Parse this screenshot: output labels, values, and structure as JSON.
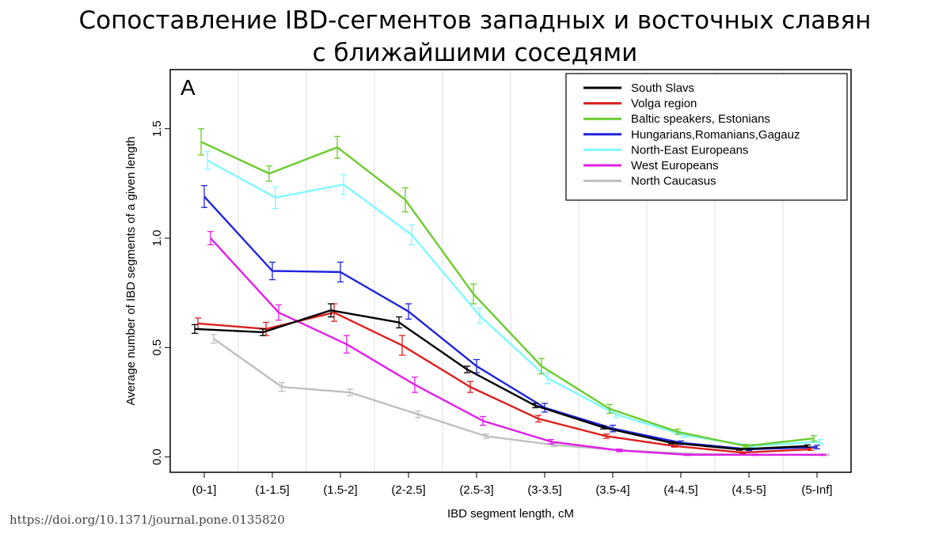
{
  "slide": {
    "title_line1": "Сопоставление IBD-сегментов западных и восточных славян",
    "title_line2": "с ближайшими соседями",
    "source": "https://doi.org/10.1371/journal.pone.0135820"
  },
  "chart_data": {
    "type": "line",
    "panel_label": "A",
    "title": "",
    "xlabel": "IBD segment length, cM",
    "ylabel": "Average number of IBD segments of a given length",
    "categories": [
      "(0-1]",
      "(1-1.5]",
      "(1.5-2]",
      "(2-2.5]",
      "(2.5-3]",
      "(3-3.5]",
      "(3.5-4]",
      "(4-4.5]",
      "(4.5-5]",
      "(5-Inf]"
    ],
    "ylim": [
      -0.07,
      1.77
    ],
    "yticks": [
      0.0,
      0.5,
      1.0,
      1.5
    ],
    "ytick_labels": [
      "0.0",
      "0.5",
      "1.0",
      "1.5"
    ],
    "grid": "vertical",
    "legend_position": "top-right",
    "series": [
      {
        "name": "South Slavs",
        "color": "#000000",
        "offset": 0,
        "values": [
          0.585,
          0.57,
          0.67,
          0.615,
          0.4,
          0.235,
          0.135,
          0.065,
          0.035,
          0.05
        ],
        "errors": [
          0.02,
          0.015,
          0.03,
          0.025,
          0.015,
          0.01,
          0.007,
          0.005,
          0.004,
          0.005
        ]
      },
      {
        "name": "Volga region",
        "color": "#dd1f1f",
        "offset": 1,
        "values": [
          0.61,
          0.585,
          0.66,
          0.51,
          0.32,
          0.175,
          0.095,
          0.05,
          0.02,
          0.035
        ],
        "errors": [
          0.025,
          0.03,
          0.04,
          0.045,
          0.025,
          0.015,
          0.01,
          0.005,
          0.004,
          0.005
        ]
      },
      {
        "name": "Baltic speakers, Estonians",
        "color": "#6acc2e",
        "offset": 2,
        "values": [
          1.44,
          1.295,
          1.415,
          1.175,
          0.745,
          0.415,
          0.22,
          0.115,
          0.05,
          0.085
        ],
        "errors": [
          0.06,
          0.035,
          0.05,
          0.055,
          0.045,
          0.035,
          0.02,
          0.012,
          0.007,
          0.012
        ]
      },
      {
        "name": "Hungarians,Romanians,Gagauz",
        "color": "#1f23dd",
        "offset": 3,
        "values": [
          1.19,
          0.85,
          0.845,
          0.665,
          0.415,
          0.225,
          0.13,
          0.065,
          0.035,
          0.045
        ],
        "errors": [
          0.05,
          0.04,
          0.045,
          0.035,
          0.03,
          0.02,
          0.015,
          0.008,
          0.006,
          0.008
        ]
      },
      {
        "name": "North-East Europeans",
        "color": "#80f8ff",
        "offset": 4,
        "values": [
          1.355,
          1.185,
          1.245,
          1.015,
          0.645,
          0.36,
          0.195,
          0.1,
          0.05,
          0.07
        ],
        "errors": [
          0.04,
          0.05,
          0.045,
          0.045,
          0.035,
          0.025,
          0.015,
          0.01,
          0.007,
          0.01
        ]
      },
      {
        "name": "West Europeans",
        "color": "#e020e8",
        "offset": 5,
        "values": [
          1.0,
          0.66,
          0.515,
          0.33,
          0.165,
          0.07,
          0.03,
          0.01,
          0.01,
          0.01
        ],
        "errors": [
          0.03,
          0.035,
          0.04,
          0.035,
          0.02,
          0.01,
          0.006,
          0.003,
          0.003,
          0.003
        ]
      },
      {
        "name": "North Caucasus",
        "color": "#bfbfbf",
        "offset": 6,
        "values": [
          0.54,
          0.32,
          0.295,
          0.195,
          0.095,
          0.055,
          0.03,
          0.015,
          0.01,
          0.01
        ],
        "errors": [
          0.02,
          0.02,
          0.015,
          0.015,
          0.01,
          0.007,
          0.004,
          0.003,
          0.002,
          0.002
        ]
      }
    ]
  }
}
